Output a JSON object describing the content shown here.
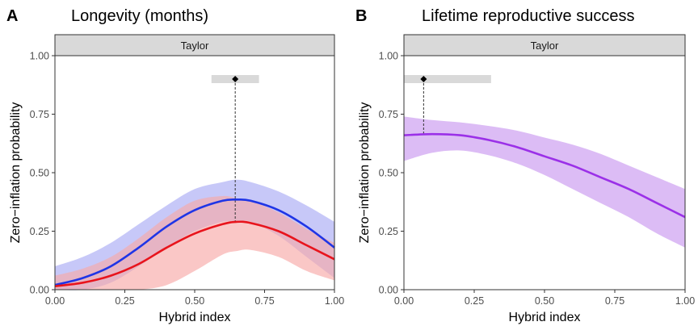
{
  "panels": [
    {
      "letter": "A",
      "title": "Longevity (months)",
      "strip": "Taylor",
      "ylabel": "Zero−inflation probability",
      "xlabel": "Hybrid index"
    },
    {
      "letter": "B",
      "title": "Lifetime reproductive success",
      "strip": "Taylor",
      "ylabel": "Zero−inflation probability",
      "xlabel": "Hybrid index"
    }
  ],
  "colors": {
    "blue_line": "#1f35e6",
    "blue_band": "#b4b6f5",
    "red_line": "#e8141c",
    "red_band": "#f7a9a7",
    "purple_line": "#9b30e8",
    "purple_band": "#dcbcf5",
    "estimate_bar": "#d9d9d9",
    "strip_fill": "#d9d9d9"
  },
  "chart_data": [
    {
      "type": "line",
      "title": "Longevity (months)",
      "facet": "Taylor",
      "xlabel": "Hybrid index",
      "ylabel": "Zero−inflation probability",
      "xlim": [
        0,
        1
      ],
      "ylim": [
        0,
        1
      ],
      "xticks": [
        "0.00",
        "0.25",
        "0.50",
        "0.75",
        "1.00"
      ],
      "yticks": [
        "0.00",
        "0.25",
        "0.50",
        "0.75",
        "1.00"
      ],
      "x": [
        0,
        0.1,
        0.2,
        0.3,
        0.4,
        0.5,
        0.6,
        0.65,
        0.7,
        0.8,
        0.9,
        1.0
      ],
      "series": [
        {
          "color": "blue",
          "values": [
            0.02,
            0.05,
            0.1,
            0.18,
            0.27,
            0.34,
            0.38,
            0.385,
            0.38,
            0.34,
            0.27,
            0.18
          ],
          "lower": [
            0.0,
            0.0,
            0.03,
            0.1,
            0.18,
            0.25,
            0.29,
            0.29,
            0.29,
            0.23,
            0.14,
            0.05
          ],
          "upper": [
            0.1,
            0.14,
            0.2,
            0.28,
            0.36,
            0.43,
            0.46,
            0.47,
            0.46,
            0.42,
            0.36,
            0.29
          ]
        },
        {
          "color": "red",
          "values": [
            0.015,
            0.03,
            0.06,
            0.11,
            0.18,
            0.24,
            0.28,
            0.29,
            0.285,
            0.25,
            0.19,
            0.13
          ],
          "lower": [
            0.0,
            0.0,
            0.0,
            0.0,
            0.02,
            0.08,
            0.15,
            0.165,
            0.17,
            0.14,
            0.08,
            0.04
          ],
          "upper": [
            0.06,
            0.09,
            0.14,
            0.22,
            0.31,
            0.38,
            0.4,
            0.39,
            0.38,
            0.33,
            0.26,
            0.2
          ]
        }
      ],
      "estimate": {
        "x": 0.645,
        "y": 0.9,
        "lower": 0.56,
        "upper": 0.73,
        "drop_to": 0.29
      }
    },
    {
      "type": "line",
      "title": "Lifetime reproductive success",
      "facet": "Taylor",
      "xlabel": "Hybrid index",
      "ylabel": "Zero−inflation probability",
      "xlim": [
        0,
        1
      ],
      "ylim": [
        0,
        1
      ],
      "xticks": [
        "0.00",
        "0.25",
        "0.50",
        "0.75",
        "1.00"
      ],
      "yticks": [
        "0.00",
        "0.25",
        "0.50",
        "0.75",
        "1.00"
      ],
      "x": [
        0,
        0.1,
        0.2,
        0.3,
        0.4,
        0.5,
        0.6,
        0.7,
        0.8,
        0.9,
        1.0
      ],
      "series": [
        {
          "color": "purple",
          "values": [
            0.66,
            0.665,
            0.66,
            0.64,
            0.61,
            0.57,
            0.53,
            0.48,
            0.43,
            0.37,
            0.31
          ],
          "lower": [
            0.55,
            0.585,
            0.595,
            0.575,
            0.54,
            0.49,
            0.43,
            0.37,
            0.31,
            0.24,
            0.18
          ],
          "upper": [
            0.74,
            0.725,
            0.715,
            0.7,
            0.68,
            0.65,
            0.62,
            0.58,
            0.53,
            0.48,
            0.43
          ]
        }
      ],
      "estimate": {
        "x": 0.07,
        "y": 0.9,
        "lower": 0.0,
        "upper": 0.31,
        "drop_to": 0.66
      }
    }
  ]
}
